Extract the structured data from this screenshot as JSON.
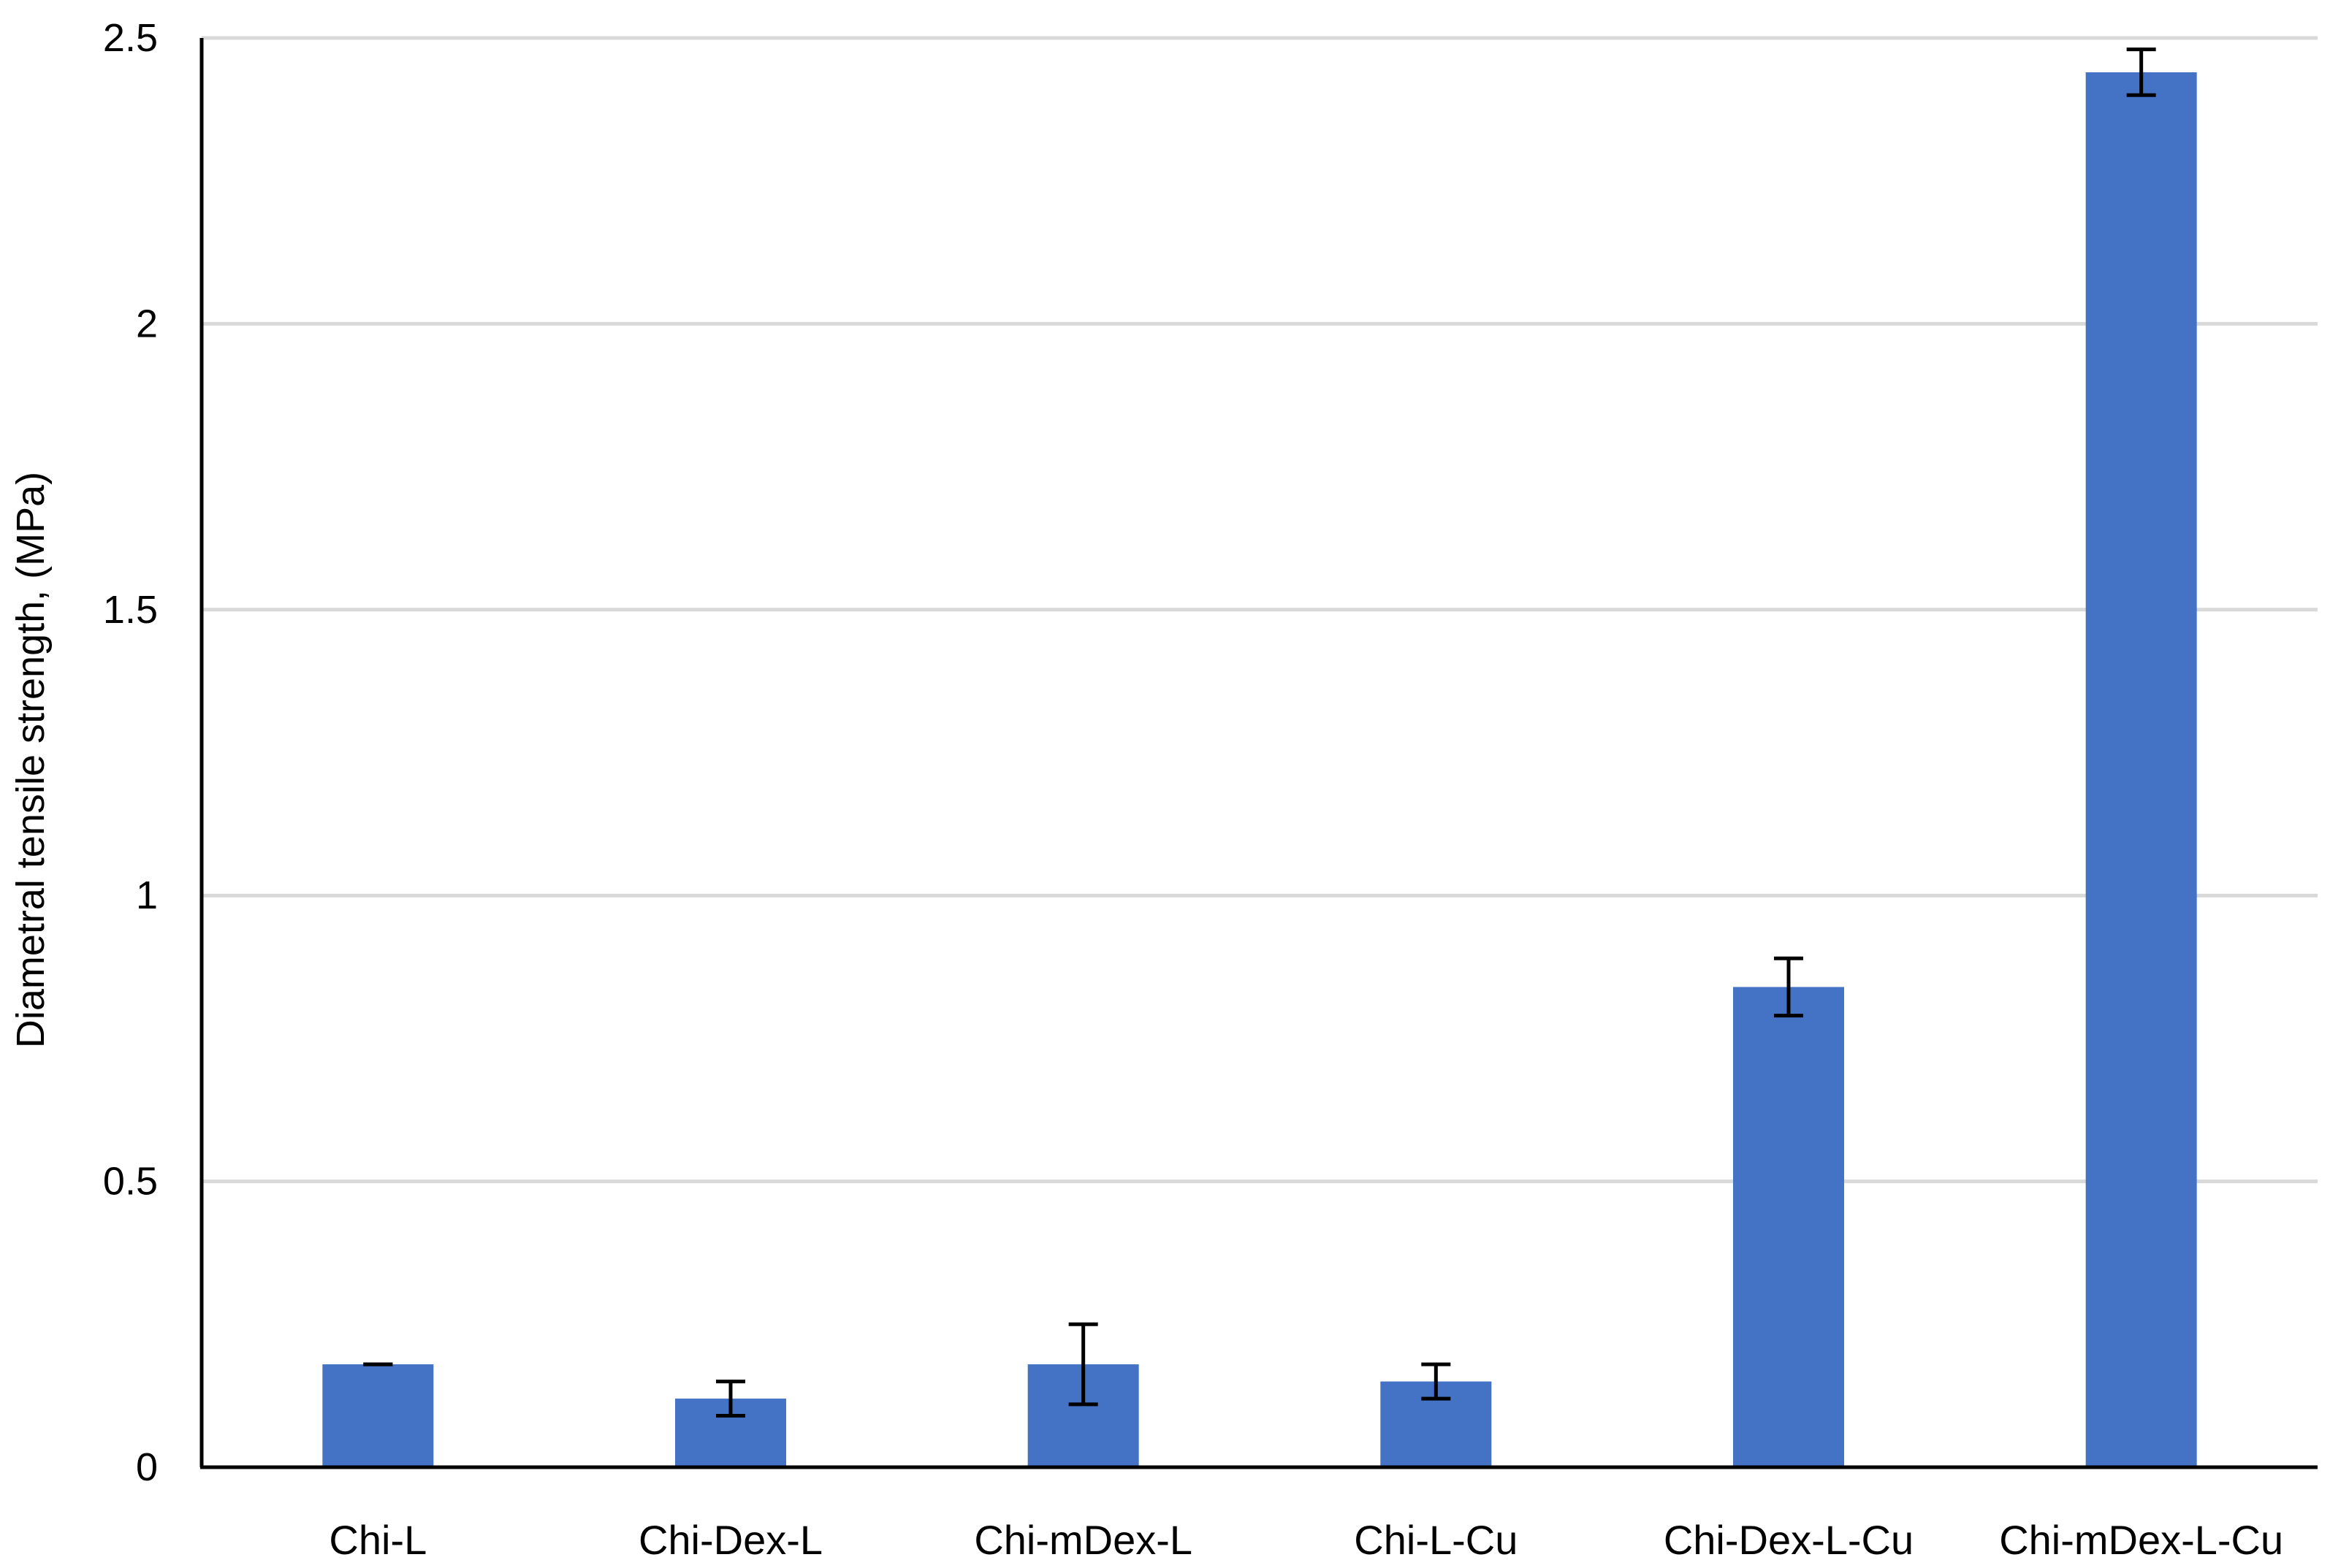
{
  "chart_data": {
    "type": "bar",
    "title": "",
    "xlabel": "",
    "ylabel": "Diametral tensile strength, (MPa)",
    "ylim": [
      0,
      2.5
    ],
    "yticks": [
      0,
      0.5,
      1,
      1.5,
      2,
      2.5
    ],
    "ytick_labels": [
      "0",
      "0.5",
      "1",
      "1.5",
      "2",
      "2.5"
    ],
    "grid": true,
    "legend": "none",
    "categories": [
      "Chi-L",
      "Chi-Dex-L",
      "Chi-mDex-L",
      "Chi-L-Cu",
      "Chi-Dex-L-Cu",
      "Chi-mDex-L-Cu"
    ],
    "values": [
      0.18,
      0.12,
      0.18,
      0.15,
      0.84,
      2.44
    ],
    "errors": [
      0.0,
      0.03,
      0.07,
      0.03,
      0.05,
      0.04
    ],
    "colors": {
      "bar": "#4472C4",
      "grid": "#D9D9D9",
      "axis": "#000000",
      "error_bar": "#000000"
    }
  }
}
